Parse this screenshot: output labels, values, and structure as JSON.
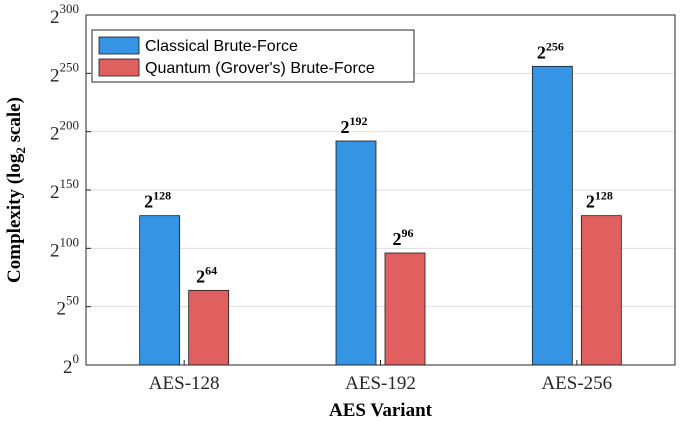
{
  "chart_data": {
    "type": "bar",
    "categories": [
      "AES-128",
      "AES-192",
      "AES-256"
    ],
    "series": [
      {
        "name": "Classical Brute-Force",
        "color": "#3594e4",
        "values": [
          128,
          192,
          256
        ],
        "labels": [
          {
            "base": "2",
            "exp": "128"
          },
          {
            "base": "2",
            "exp": "192"
          },
          {
            "base": "2",
            "exp": "256"
          }
        ]
      },
      {
        "name": "Quantum (Grover's) Brute-Force",
        "color": "#e06060",
        "values": [
          64,
          96,
          128
        ],
        "labels": [
          {
            "base": "2",
            "exp": "64"
          },
          {
            "base": "2",
            "exp": "96"
          },
          {
            "base": "2",
            "exp": "128"
          }
        ]
      }
    ],
    "xlabel": "AES Variant",
    "ylabel": {
      "prefix": "Complexity (log",
      "sub": "2",
      "suffix": " scale)"
    },
    "ylim": [
      0,
      300
    ],
    "yticks": [
      {
        "value": 0,
        "base": "2",
        "exp": "0"
      },
      {
        "value": 50,
        "base": "2",
        "exp": "50"
      },
      {
        "value": 100,
        "base": "2",
        "exp": "100"
      },
      {
        "value": 150,
        "base": "2",
        "exp": "150"
      },
      {
        "value": 200,
        "base": "2",
        "exp": "200"
      },
      {
        "value": 250,
        "base": "2",
        "exp": "250"
      },
      {
        "value": 300,
        "base": "2",
        "exp": "300"
      }
    ],
    "grid": true,
    "legend_position": "top-left"
  }
}
